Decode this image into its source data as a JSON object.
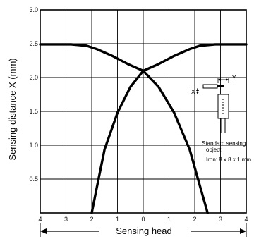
{
  "chart_data": {
    "type": "line",
    "ylabel": "Sensing distance X (mm)",
    "xlabel": "Sensing head",
    "xlim": [
      -4,
      4
    ],
    "ylim": [
      0,
      3.0
    ],
    "x_tick_labels": [
      "4",
      "3",
      "2",
      "1",
      "0",
      "1",
      "2",
      "3",
      "4"
    ],
    "x_tick_values": [
      -4,
      -3,
      -2,
      -1,
      0,
      1,
      2,
      3,
      4
    ],
    "y_tick_labels": [
      "0.5",
      "1.0",
      "1.5",
      "2.0",
      "2.5",
      "3.0"
    ],
    "y_tick_values": [
      0.5,
      1.0,
      1.5,
      2.0,
      2.5,
      3.0
    ],
    "grid": true,
    "series": [
      {
        "x": [
          -4.0,
          -2.8,
          -2.2,
          -1.8,
          -1.2,
          -0.6,
          0.0,
          0.6,
          1.2,
          1.8,
          2.2,
          2.5
        ],
        "y": [
          2.49,
          2.49,
          2.47,
          2.42,
          2.32,
          2.2,
          2.1,
          1.86,
          1.48,
          0.94,
          0.4,
          0.0
        ]
      },
      {
        "x": [
          -2.0,
          -1.8,
          -1.5,
          -1.0,
          -0.5,
          0.0,
          0.6,
          1.2,
          1.8,
          2.2,
          2.8,
          4.0
        ],
        "y": [
          0.0,
          0.38,
          0.94,
          1.48,
          1.86,
          2.1,
          2.2,
          2.32,
          2.42,
          2.47,
          2.49,
          2.49
        ]
      }
    ],
    "annotation": {
      "axis_y_label": "Y",
      "axis_x_label": "X",
      "lines": [
        "Standard sensing",
        "object",
        "Iron: 8 x 8 x 1 mm"
      ]
    }
  }
}
